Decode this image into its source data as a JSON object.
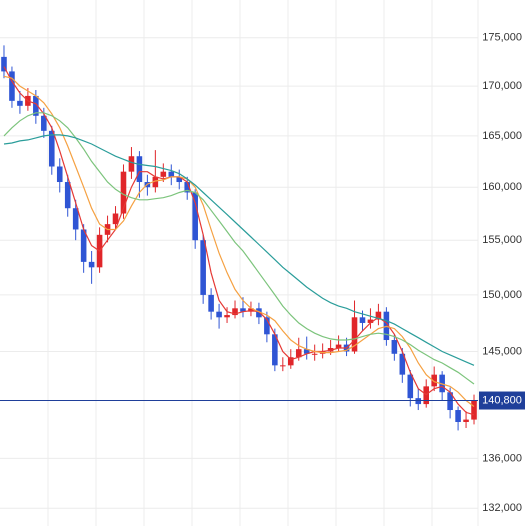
{
  "chart_data": {
    "type": "candlestick",
    "log_scale": true,
    "grid": true,
    "up_color": "#e0262a",
    "down_color": "#2f55d4",
    "ylim": [
      130600,
      179000
    ],
    "yticks": [
      {
        "value": 132000,
        "label": "132,000"
      },
      {
        "value": 136000,
        "label": "136,000"
      },
      {
        "value": 145000,
        "label": "145,000"
      },
      {
        "value": 150000,
        "label": "150,000"
      },
      {
        "value": 155000,
        "label": "155,000"
      },
      {
        "value": 160000,
        "label": "160,000"
      },
      {
        "value": 165000,
        "label": "165,000"
      },
      {
        "value": 170000,
        "label": "170,000"
      },
      {
        "value": 175000,
        "label": "175,000"
      }
    ],
    "last_price": {
      "value": 140800,
      "label": "140,800",
      "color": "#1f3f9a"
    },
    "open": [
      173000,
      171500,
      168500,
      168000,
      169000,
      167000,
      165500,
      162000,
      160500,
      158000,
      156000,
      153000,
      152500,
      155500,
      156500,
      157500,
      161500,
      163000,
      160500,
      160000,
      161000,
      161500,
      161000,
      160500,
      159500,
      155000,
      150000,
      148500,
      148000,
      148200,
      148800,
      148500,
      148800,
      148000,
      146500,
      143800,
      143800,
      144500,
      145200,
      144800,
      144800,
      145000,
      145300,
      145600,
      145000,
      148000,
      147500,
      147800,
      148500,
      146000,
      144800,
      143000,
      141000,
      140500,
      142000,
      143000,
      141500,
      140000,
      139000,
      139200
    ],
    "high": [
      174200,
      172000,
      169500,
      169800,
      169600,
      167800,
      166000,
      162800,
      161200,
      158800,
      156500,
      154000,
      156200,
      157300,
      158200,
      162200,
      163900,
      163500,
      161200,
      163600,
      162300,
      162200,
      161700,
      161000,
      159800,
      155500,
      150600,
      149200,
      148900,
      149500,
      149800,
      149400,
      149300,
      148500,
      147000,
      144500,
      145200,
      146200,
      146300,
      145600,
      145700,
      146000,
      146400,
      146200,
      149500,
      148600,
      148800,
      149200,
      148900,
      146500,
      145300,
      143400,
      141800,
      142600,
      143700,
      143300,
      141900,
      140300,
      139900,
      141300
    ],
    "low": [
      170800,
      167800,
      167200,
      167500,
      166200,
      164800,
      161200,
      159500,
      157200,
      155000,
      152000,
      151000,
      152000,
      154800,
      156000,
      157000,
      160800,
      159000,
      159200,
      159500,
      160500,
      160200,
      159800,
      158800,
      154200,
      149200,
      147800,
      147000,
      147500,
      147900,
      148000,
      148100,
      147400,
      145800,
      143300,
      143300,
      143500,
      144200,
      144300,
      144200,
      144400,
      144700,
      145000,
      144600,
      144800,
      146800,
      147000,
      147300,
      145500,
      144200,
      142300,
      140300,
      140000,
      140200,
      141600,
      140800,
      139300,
      138300,
      138500,
      138800
    ],
    "close": [
      171500,
      168500,
      168000,
      169000,
      167000,
      165500,
      162000,
      160500,
      158000,
      156000,
      153000,
      152500,
      155500,
      156500,
      157500,
      161500,
      163000,
      160500,
      160000,
      161000,
      161500,
      161000,
      160500,
      159500,
      155000,
      150000,
      148500,
      148000,
      148200,
      148800,
      148500,
      148800,
      148000,
      146500,
      143800,
      143800,
      144500,
      145200,
      144800,
      144800,
      145000,
      145300,
      145600,
      145000,
      148000,
      147500,
      147800,
      148500,
      146000,
      144800,
      143000,
      141000,
      140500,
      142000,
      143000,
      141500,
      140000,
      139000,
      139200,
      140800
    ],
    "series": [
      {
        "color": "#e53935",
        "values": [
          172000,
          170500,
          169300,
          168500,
          168200,
          167200,
          165800,
          163500,
          161000,
          158500,
          156000,
          154500,
          154000,
          155000,
          156000,
          158000,
          160000,
          161500,
          161500,
          161000,
          160800,
          161000,
          161000,
          160500,
          158500,
          155500,
          152000,
          149500,
          148500,
          148300,
          148500,
          148600,
          148500,
          147800,
          146500,
          145000,
          144300,
          144500,
          144800,
          145000,
          145000,
          145100,
          145300,
          145300,
          146000,
          146800,
          147500,
          148000,
          147500,
          146500,
          145000,
          143200,
          141800,
          141300,
          141800,
          142000,
          141500,
          140500,
          139800,
          139600
        ]
      },
      {
        "color": "#f5a142",
        "values": [
          171000,
          170800,
          170000,
          169500,
          169000,
          168300,
          167200,
          165800,
          164000,
          162000,
          160000,
          158000,
          156500,
          156000,
          156000,
          156800,
          158200,
          159500,
          160300,
          160600,
          160700,
          161000,
          161000,
          160800,
          160000,
          158300,
          156000,
          153800,
          152000,
          150500,
          149500,
          148800,
          148500,
          148200,
          147700,
          146800,
          146000,
          145500,
          145200,
          145000,
          144900,
          144900,
          145000,
          145100,
          145500,
          146000,
          146500,
          147000,
          147200,
          147000,
          146300,
          145300,
          144000,
          143000,
          142400,
          142200,
          142000,
          141500,
          140800,
          140300
        ]
      },
      {
        "color": "#7cc47c",
        "values": [
          165000,
          165800,
          166500,
          167000,
          167300,
          167300,
          167000,
          166500,
          165800,
          164800,
          163700,
          162500,
          161500,
          160500,
          159800,
          159300,
          159000,
          158800,
          158800,
          158900,
          159000,
          159200,
          159500,
          159700,
          159500,
          158800,
          157800,
          156800,
          155800,
          154800,
          154000,
          153000,
          152000,
          151000,
          150000,
          149000,
          148200,
          147500,
          147000,
          146600,
          146300,
          146100,
          146000,
          146000,
          146100,
          146300,
          146500,
          146600,
          146500,
          146300,
          146000,
          145600,
          145100,
          144700,
          144300,
          144000,
          143600,
          143200,
          142700,
          142200
        ]
      },
      {
        "color": "#2a9d9a",
        "values": [
          164200,
          164300,
          164500,
          164600,
          164800,
          165000,
          165100,
          165100,
          165000,
          164800,
          164500,
          164200,
          163800,
          163400,
          163000,
          162700,
          162400,
          162200,
          162100,
          162000,
          161800,
          161600,
          161300,
          160800,
          160200,
          159500,
          158800,
          158100,
          157400,
          156700,
          156000,
          155300,
          154600,
          153900,
          153200,
          152500,
          151900,
          151300,
          150700,
          150200,
          149700,
          149300,
          149000,
          148800,
          148500,
          148300,
          148100,
          147900,
          147700,
          147400,
          147000,
          146600,
          146200,
          145800,
          145400,
          145000,
          144700,
          144400,
          144100,
          143800
        ]
      }
    ]
  }
}
